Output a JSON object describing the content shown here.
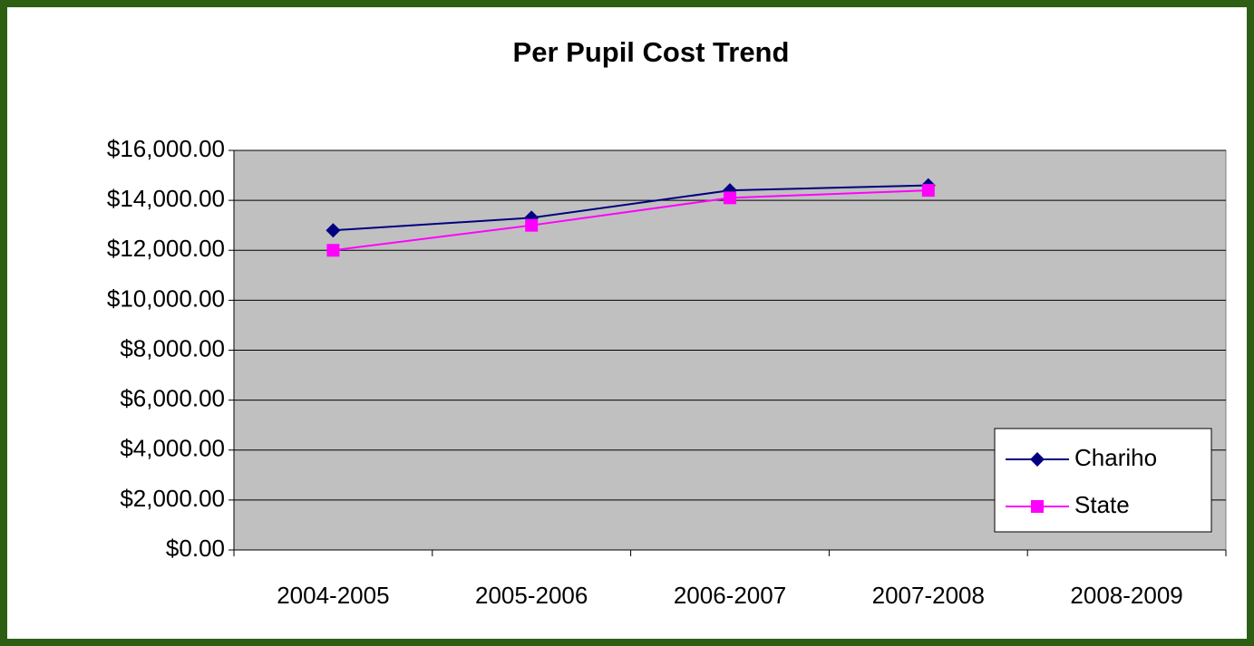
{
  "chart_data": {
    "type": "line",
    "title": "Per Pupil Cost Trend",
    "categories": [
      "2004-2005",
      "2005-2006",
      "2006-2007",
      "2007-2008",
      "2008-2009"
    ],
    "series": [
      {
        "name": "Chariho",
        "color": "#000080",
        "marker": "diamond",
        "values": [
          12800,
          13300,
          14400,
          14600,
          null
        ]
      },
      {
        "name": "State",
        "color": "#ff00ff",
        "marker": "square",
        "values": [
          12000,
          13000,
          14100,
          14400,
          null
        ]
      }
    ],
    "ylim": [
      0,
      16000
    ],
    "yticks": [
      {
        "value": 0,
        "label": "$0.00"
      },
      {
        "value": 2000,
        "label": "$2,000.00"
      },
      {
        "value": 4000,
        "label": "$4,000.00"
      },
      {
        "value": 6000,
        "label": "$6,000.00"
      },
      {
        "value": 8000,
        "label": "$8,000.00"
      },
      {
        "value": 10000,
        "label": "$10,000.00"
      },
      {
        "value": 12000,
        "label": "$12,000.00"
      },
      {
        "value": 14000,
        "label": "$14,000.00"
      },
      {
        "value": 16000,
        "label": "$16,000.00"
      }
    ],
    "grid": true,
    "legend": "lower right"
  }
}
